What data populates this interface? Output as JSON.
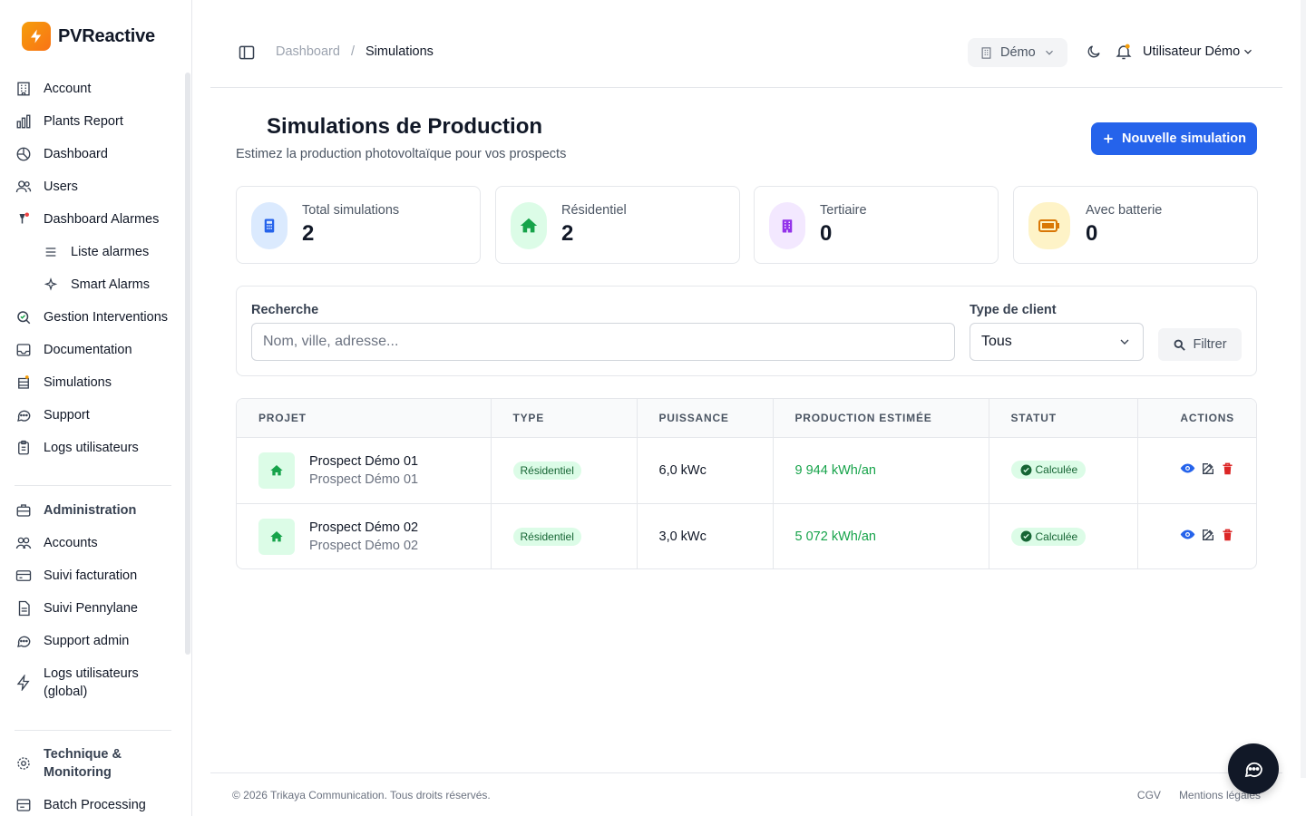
{
  "brand": {
    "name": "PVReactive",
    "accent": "#f59e0b"
  },
  "sidebar": {
    "items": [
      {
        "label": "Account",
        "icon": "building-icon"
      },
      {
        "label": "Plants Report",
        "icon": "bar-chart-icon"
      },
      {
        "label": "Dashboard",
        "icon": "pie-chart-icon"
      },
      {
        "label": "Users",
        "icon": "users-icon"
      },
      {
        "label": "Dashboard Alarmes",
        "icon": "alarm-icon"
      },
      {
        "label": "Liste alarmes",
        "icon": "list-icon"
      },
      {
        "label": "Smart Alarms",
        "icon": "sparkle-icon"
      },
      {
        "label": "Gestion Interventions",
        "icon": "search-check-icon"
      },
      {
        "label": "Documentation",
        "icon": "inbox-icon"
      },
      {
        "label": "Simulations",
        "icon": "database-icon"
      },
      {
        "label": "Support",
        "icon": "chat-icon"
      },
      {
        "label": "Logs utilisateurs",
        "icon": "clipboard-icon"
      },
      {
        "label": "Administration",
        "icon": "briefcase-icon"
      },
      {
        "label": "Accounts",
        "icon": "users-cog-icon"
      },
      {
        "label": "Suivi facturation",
        "icon": "credit-card-icon"
      },
      {
        "label": "Suivi Pennylane",
        "icon": "document-icon"
      },
      {
        "label": "Support admin",
        "icon": "chat-icon"
      },
      {
        "label": "Logs utilisateurs (global)",
        "icon": "bolt-icon"
      },
      {
        "label": "Technique & Monitoring",
        "icon": "gear-icon"
      },
      {
        "label": "Batch Processing",
        "icon": "server-icon"
      }
    ]
  },
  "header": {
    "breadcrumb": [
      "Dashboard",
      "/",
      "Simulations"
    ],
    "org_select": "Démo",
    "user": "Utilisateur Démo"
  },
  "page": {
    "title": "Simulations de Production",
    "subtitle": "Estimez la production photovoltaïque pour vos prospects",
    "new_button": "Nouvelle simulation"
  },
  "stats": [
    {
      "label": "Total simulations",
      "value": "2",
      "icon": "calculator-icon",
      "bg": "#dbeafe",
      "color": "#2563eb"
    },
    {
      "label": "Résidentiel",
      "value": "2",
      "icon": "home-icon",
      "bg": "#dcfce7",
      "color": "#16a34a"
    },
    {
      "label": "Tertiaire",
      "value": "0",
      "icon": "office-building-icon",
      "bg": "#f3e8ff",
      "color": "#9333ea"
    },
    {
      "label": "Avec batterie",
      "value": "0",
      "icon": "battery-icon",
      "bg": "#fef3c7",
      "color": "#d97706"
    }
  ],
  "filters": {
    "search_label": "Recherche",
    "search_placeholder": "Nom, ville, adresse...",
    "type_label": "Type de client",
    "type_value": "Tous",
    "filter_button": "Filtrer"
  },
  "table": {
    "columns": [
      "PROJET",
      "TYPE",
      "PUISSANCE",
      "PRODUCTION ESTIMÉE",
      "STATUT",
      "ACTIONS"
    ],
    "rows": [
      {
        "name": "Prospect Démo 01",
        "sub": "Prospect Démo 01",
        "type": "Résidentiel",
        "power": "6,0 kWc",
        "production": "9 944 kWh/an",
        "status": "Calculée"
      },
      {
        "name": "Prospect Démo 02",
        "sub": "Prospect Démo 02",
        "type": "Résidentiel",
        "power": "3,0 kWc",
        "production": "5 072 kWh/an",
        "status": "Calculée"
      }
    ]
  },
  "footer": {
    "copyright": "© 2026 Trikaya Communication. Tous droits réservés.",
    "links": [
      "CGV",
      "Mentions légales"
    ]
  }
}
